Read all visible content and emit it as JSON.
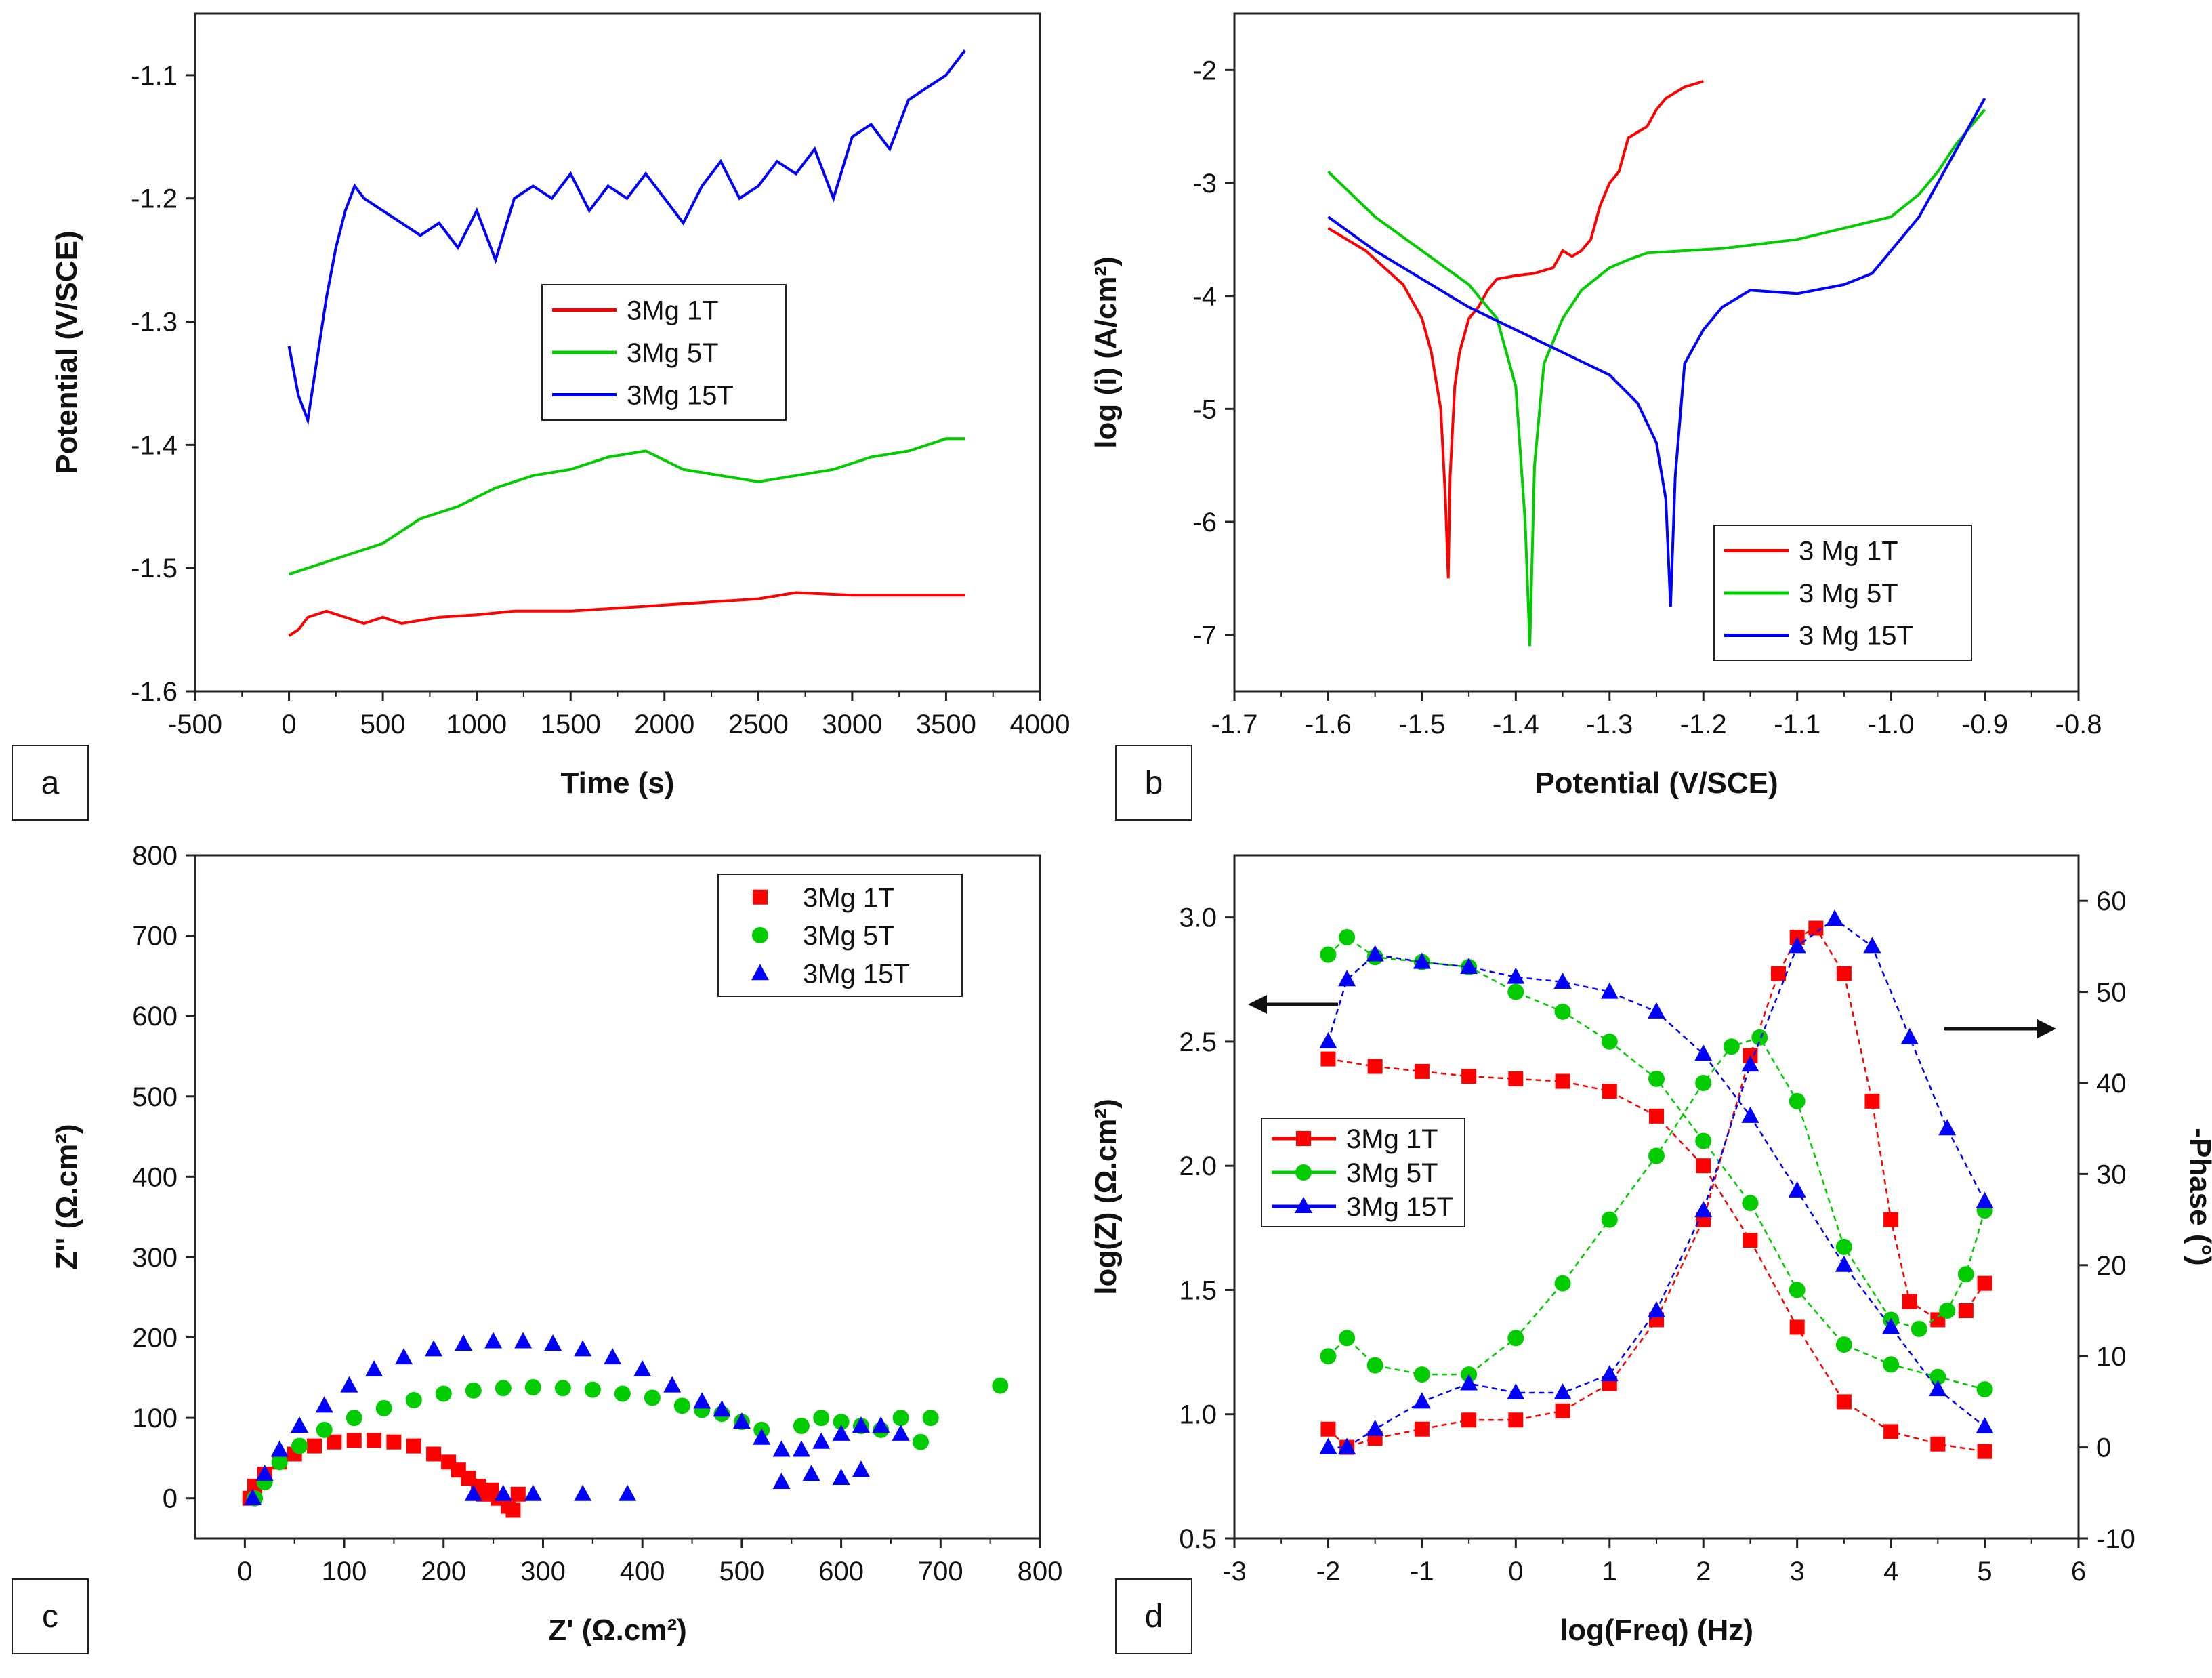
{
  "chart_data": [
    {
      "id": "a",
      "type": "line",
      "panel_label": "a",
      "xlabel": "Time (s)",
      "ylabel": "Potential (V/SCE)",
      "xlim": [
        -500,
        4000
      ],
      "ylim": [
        -1.6,
        -1.05
      ],
      "xticks": [
        "-500",
        "0",
        "500",
        "1000",
        "1500",
        "2000",
        "2500",
        "3000",
        "3500",
        "4000"
      ],
      "yticks": [
        "-1.6",
        "-1.5",
        "-1.4",
        "-1.3",
        "-1.2",
        "-1.1"
      ],
      "legend": [
        "3Mg 1T",
        "3Mg 5T",
        "3Mg 15T"
      ],
      "series": [
        {
          "name": "3Mg 1T",
          "color": "#ff0000",
          "x": [
            0,
            50,
            100,
            200,
            300,
            400,
            500,
            600,
            800,
            1000,
            1200,
            1500,
            2000,
            2500,
            2700,
            3000,
            3600
          ],
          "y": [
            -1.555,
            -1.55,
            -1.54,
            -1.535,
            -1.54,
            -1.545,
            -1.54,
            -1.545,
            -1.54,
            -1.538,
            -1.535,
            -1.535,
            -1.53,
            -1.525,
            -1.52,
            -1.522,
            -1.522
          ]
        },
        {
          "name": "3Mg 5T",
          "color": "#00cc00",
          "x": [
            0,
            100,
            200,
            300,
            500,
            700,
            900,
            1100,
            1300,
            1500,
            1700,
            1900,
            2100,
            2300,
            2500,
            2700,
            2900,
            3100,
            3300,
            3500,
            3600
          ],
          "y": [
            -1.505,
            -1.5,
            -1.495,
            -1.49,
            -1.48,
            -1.46,
            -1.45,
            -1.435,
            -1.425,
            -1.42,
            -1.41,
            -1.405,
            -1.42,
            -1.425,
            -1.43,
            -1.425,
            -1.42,
            -1.41,
            -1.405,
            -1.395,
            -1.395
          ]
        },
        {
          "name": "3Mg 15T",
          "color": "#0000ff",
          "x": [
            0,
            50,
            100,
            150,
            200,
            250,
            300,
            350,
            400,
            500,
            600,
            700,
            800,
            900,
            1000,
            1100,
            1200,
            1300,
            1400,
            1500,
            1600,
            1700,
            1800,
            1900,
            2000,
            2100,
            2200,
            2300,
            2400,
            2500,
            2600,
            2700,
            2800,
            2900,
            3000,
            3100,
            3200,
            3300,
            3400,
            3500,
            3600
          ],
          "y": [
            -1.32,
            -1.36,
            -1.38,
            -1.33,
            -1.28,
            -1.24,
            -1.21,
            -1.19,
            -1.2,
            -1.21,
            -1.22,
            -1.23,
            -1.22,
            -1.24,
            -1.21,
            -1.25,
            -1.2,
            -1.19,
            -1.2,
            -1.18,
            -1.21,
            -1.19,
            -1.2,
            -1.18,
            -1.2,
            -1.22,
            -1.19,
            -1.17,
            -1.2,
            -1.19,
            -1.17,
            -1.18,
            -1.16,
            -1.2,
            -1.15,
            -1.14,
            -1.16,
            -1.12,
            -1.11,
            -1.1,
            -1.08
          ]
        }
      ]
    },
    {
      "id": "b",
      "type": "line",
      "panel_label": "b",
      "xlabel": "Potential (V/SCE)",
      "ylabel": "log (i) (A/cm²)",
      "xlim": [
        -1.7,
        -0.8
      ],
      "ylim": [
        -7.5,
        -1.5
      ],
      "xticks": [
        "-1.7",
        "-1.6",
        "-1.5",
        "-1.4",
        "-1.3",
        "-1.2",
        "-1.1",
        "-1.0",
        "-0.9",
        "-0.8"
      ],
      "yticks": [
        "-7",
        "-6",
        "-5",
        "-4",
        "-3",
        "-2"
      ],
      "legend": [
        "3 Mg 1T",
        "3 Mg 5T",
        "3 Mg 15T"
      ],
      "series": [
        {
          "name": "3 Mg 1T",
          "color": "#ff0000",
          "x": [
            -1.6,
            -1.56,
            -1.52,
            -1.5,
            -1.49,
            -1.48,
            -1.475,
            -1.472,
            -1.47,
            -1.465,
            -1.46,
            -1.45,
            -1.44,
            -1.43,
            -1.42,
            -1.4,
            -1.38,
            -1.36,
            -1.35,
            -1.34,
            -1.33,
            -1.32,
            -1.31,
            -1.3,
            -1.29,
            -1.28,
            -1.27,
            -1.26,
            -1.25,
            -1.24,
            -1.22,
            -1.2
          ],
          "y": [
            -3.4,
            -3.6,
            -3.9,
            -4.2,
            -4.5,
            -5.0,
            -5.8,
            -6.5,
            -5.6,
            -4.8,
            -4.5,
            -4.2,
            -4.1,
            -3.95,
            -3.85,
            -3.82,
            -3.8,
            -3.75,
            -3.6,
            -3.65,
            -3.6,
            -3.5,
            -3.2,
            -3.0,
            -2.9,
            -2.6,
            -2.55,
            -2.5,
            -2.35,
            -2.25,
            -2.15,
            -2.1
          ]
        },
        {
          "name": "3 Mg 5T",
          "color": "#00cc00",
          "x": [
            -1.6,
            -1.55,
            -1.5,
            -1.45,
            -1.42,
            -1.4,
            -1.39,
            -1.385,
            -1.38,
            -1.37,
            -1.35,
            -1.33,
            -1.3,
            -1.28,
            -1.26,
            -1.22,
            -1.18,
            -1.1,
            -1.05,
            -1.0,
            -0.97,
            -0.95,
            -0.93,
            -0.9
          ],
          "y": [
            -2.9,
            -3.3,
            -3.6,
            -3.9,
            -4.2,
            -4.8,
            -6.0,
            -7.1,
            -5.5,
            -4.6,
            -4.2,
            -3.95,
            -3.75,
            -3.68,
            -3.62,
            -3.6,
            -3.58,
            -3.5,
            -3.4,
            -3.3,
            -3.1,
            -2.9,
            -2.65,
            -2.35
          ]
        },
        {
          "name": "3 Mg 15T",
          "color": "#0000ff",
          "x": [
            -1.6,
            -1.55,
            -1.5,
            -1.45,
            -1.4,
            -1.35,
            -1.3,
            -1.27,
            -1.25,
            -1.24,
            -1.235,
            -1.23,
            -1.22,
            -1.2,
            -1.18,
            -1.15,
            -1.1,
            -1.05,
            -1.02,
            -1.0,
            -0.97,
            -0.95,
            -0.93,
            -0.9
          ],
          "y": [
            -3.3,
            -3.6,
            -3.85,
            -4.1,
            -4.3,
            -4.5,
            -4.7,
            -4.95,
            -5.3,
            -5.8,
            -6.75,
            -5.6,
            -4.6,
            -4.3,
            -4.1,
            -3.95,
            -3.98,
            -3.9,
            -3.8,
            -3.6,
            -3.3,
            -3.0,
            -2.7,
            -2.25
          ]
        }
      ]
    },
    {
      "id": "c",
      "type": "scatter",
      "panel_label": "c",
      "xlabel": "Z' (Ω.cm²)",
      "ylabel": "Z'' (Ω.cm²)",
      "xlim": [
        -50,
        800
      ],
      "ylim": [
        -50,
        800
      ],
      "xticks": [
        "0",
        "100",
        "200",
        "300",
        "400",
        "500",
        "600",
        "700",
        "800"
      ],
      "yticks": [
        "0",
        "100",
        "200",
        "300",
        "400",
        "500",
        "600",
        "700",
        "800"
      ],
      "legend": [
        "3Mg 1T",
        "3Mg 5T",
        "3Mg 15T"
      ],
      "series": [
        {
          "name": "3Mg 1T",
          "color": "#ff0000",
          "marker": "square",
          "x": [
            5,
            10,
            20,
            35,
            50,
            70,
            90,
            110,
            130,
            150,
            170,
            190,
            205,
            215,
            225,
            235,
            240,
            248,
            255,
            265,
            270,
            275
          ],
          "y": [
            0,
            15,
            30,
            45,
            55,
            65,
            70,
            72,
            72,
            70,
            65,
            55,
            45,
            35,
            25,
            15,
            5,
            10,
            0,
            -10,
            -15,
            5
          ]
        },
        {
          "name": "3Mg 5T",
          "color": "#00cc00",
          "marker": "circle",
          "x": [
            10,
            20,
            35,
            55,
            80,
            110,
            140,
            170,
            200,
            230,
            260,
            290,
            320,
            350,
            380,
            410,
            440,
            460,
            480,
            500,
            520,
            560,
            580,
            600,
            620,
            640,
            660,
            680,
            690,
            760
          ],
          "y": [
            0,
            20,
            45,
            65,
            85,
            100,
            112,
            122,
            130,
            134,
            137,
            138,
            137,
            135,
            130,
            125,
            115,
            110,
            105,
            95,
            85,
            90,
            100,
            95,
            90,
            85,
            100,
            70,
            100,
            140
          ]
        },
        {
          "name": "3Mg 15T",
          "color": "#0000ff",
          "marker": "triangle",
          "x": [
            8,
            20,
            35,
            55,
            80,
            105,
            130,
            160,
            190,
            220,
            250,
            280,
            310,
            340,
            370,
            400,
            430,
            460,
            480,
            500,
            520,
            540,
            560,
            580,
            600,
            620,
            640,
            660,
            540,
            570,
            600,
            620,
            230,
            260,
            290,
            340,
            385
          ],
          "y": [
            0,
            30,
            60,
            90,
            115,
            140,
            160,
            175,
            185,
            192,
            195,
            195,
            192,
            185,
            175,
            160,
            140,
            120,
            110,
            95,
            75,
            60,
            60,
            70,
            80,
            90,
            90,
            80,
            20,
            30,
            25,
            35,
            5,
            5,
            5,
            5,
            5
          ]
        }
      ]
    },
    {
      "id": "d",
      "type": "line",
      "panel_label": "d",
      "xlabel": "log(Freq) (Hz)",
      "ylabel": "log(Z) (Ω.cm²)",
      "y2label": "-Phase (°)",
      "xlim": [
        -3,
        6
      ],
      "ylim": [
        0.5,
        3.25
      ],
      "y2lim": [
        -10,
        65
      ],
      "xticks": [
        "-3",
        "-2",
        "-1",
        "0",
        "1",
        "2",
        "3",
        "4",
        "5",
        "6"
      ],
      "yticks": [
        "0.5",
        "1.0",
        "1.5",
        "2.0",
        "2.5",
        "3.0"
      ],
      "y2ticks": [
        "-10",
        "0",
        "10",
        "20",
        "30",
        "40",
        "50",
        "60"
      ],
      "legend": [
        "3Mg 1T",
        "3Mg 5T",
        "3Mg 15T"
      ],
      "series": [
        {
          "name": "3Mg 1T",
          "color": "#ff0000",
          "marker": "square",
          "axis": "left",
          "x": [
            -2,
            -1.5,
            -1,
            -0.5,
            0,
            0.5,
            1,
            1.5,
            2,
            2.5,
            3,
            3.5,
            4,
            4.5,
            5
          ],
          "y": [
            2.43,
            2.4,
            2.38,
            2.36,
            2.35,
            2.34,
            2.3,
            2.2,
            2.0,
            1.7,
            1.35,
            1.05,
            0.93,
            0.88,
            0.85
          ]
        },
        {
          "name": "3Mg 1T",
          "color": "#ff0000",
          "marker": "square",
          "axis": "right",
          "x": [
            -2,
            -1.8,
            -1.5,
            -1,
            -0.5,
            0,
            0.5,
            1,
            1.5,
            2,
            2.5,
            2.8,
            3,
            3.2,
            3.5,
            3.8,
            4,
            4.2,
            4.5,
            4.8,
            5
          ],
          "y": [
            2,
            0,
            1,
            2,
            3,
            3,
            4,
            7,
            14,
            25,
            43,
            52,
            56,
            57,
            52,
            38,
            25,
            16,
            14,
            15,
            18
          ]
        },
        {
          "name": "3Mg 5T",
          "color": "#00cc00",
          "marker": "circle",
          "axis": "left",
          "x": [
            -2,
            -1.8,
            -1.5,
            -1,
            -0.5,
            0,
            0.5,
            1,
            1.5,
            2,
            2.5,
            3,
            3.5,
            4,
            4.5,
            5
          ],
          "y": [
            2.85,
            2.92,
            2.84,
            2.82,
            2.8,
            2.7,
            2.62,
            2.5,
            2.35,
            2.1,
            1.85,
            1.5,
            1.28,
            1.2,
            1.15,
            1.1
          ]
        },
        {
          "name": "3Mg 5T",
          "color": "#00cc00",
          "marker": "circle",
          "axis": "right",
          "x": [
            -2,
            -1.8,
            -1.5,
            -1,
            -0.5,
            0,
            0.5,
            1,
            1.5,
            2,
            2.3,
            2.6,
            3,
            3.5,
            4,
            4.3,
            4.6,
            4.8,
            5
          ],
          "y": [
            10,
            12,
            9,
            8,
            8,
            12,
            18,
            25,
            32,
            40,
            44,
            45,
            38,
            22,
            14,
            13,
            15,
            19,
            26
          ]
        },
        {
          "name": "3Mg 15T",
          "color": "#0000ff",
          "marker": "triangle",
          "axis": "left",
          "x": [
            -2,
            -1.8,
            -1.5,
            -1,
            -0.5,
            0,
            0.5,
            1,
            1.5,
            2,
            2.5,
            3,
            3.5,
            4,
            4.5,
            5
          ],
          "y": [
            2.5,
            2.75,
            2.85,
            2.82,
            2.8,
            2.76,
            2.74,
            2.7,
            2.62,
            2.45,
            2.2,
            1.9,
            1.6,
            1.35,
            1.1,
            0.95
          ]
        },
        {
          "name": "3Mg 15T",
          "color": "#0000ff",
          "marker": "triangle",
          "axis": "right",
          "x": [
            -2,
            -1.8,
            -1.5,
            -1,
            -0.5,
            0,
            0.5,
            1,
            1.5,
            2,
            2.5,
            3,
            3.4,
            3.8,
            4.2,
            4.6,
            5
          ],
          "y": [
            0,
            0,
            2,
            5,
            7,
            6,
            6,
            8,
            15,
            26,
            42,
            55,
            58,
            55,
            45,
            35,
            27
          ]
        }
      ]
    }
  ]
}
